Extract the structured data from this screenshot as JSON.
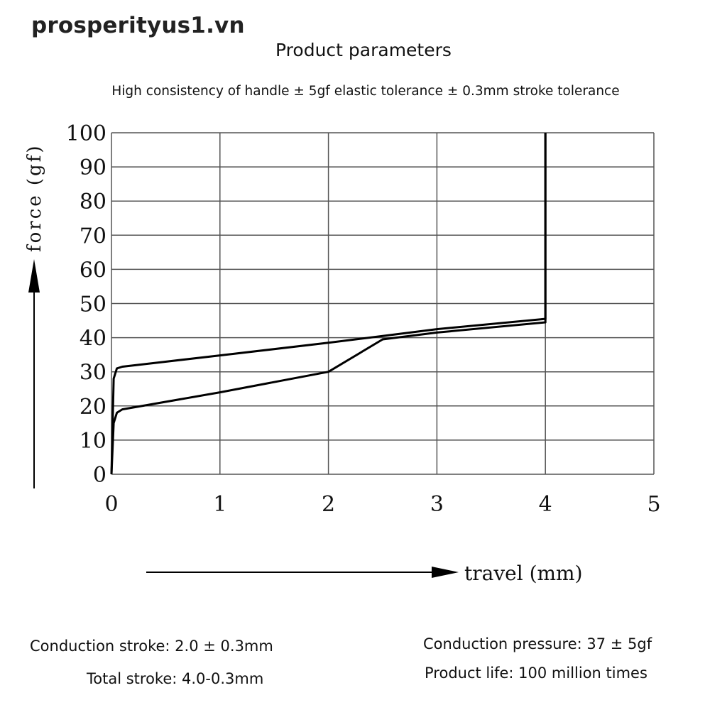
{
  "header": {
    "watermark": "prosperityus1.vn",
    "title": "Product parameters",
    "subtitle": "High consistency of handle ± 5gf elastic tolerance ± 0.3mm stroke tolerance"
  },
  "chart_data": {
    "type": "line",
    "title": "",
    "xlabel": "travel (mm)",
    "ylabel": "force (gf)",
    "xlim": [
      0,
      5
    ],
    "ylim": [
      0,
      100
    ],
    "x_ticks": [
      "0",
      "1",
      "2",
      "3",
      "4",
      "5"
    ],
    "y_ticks": [
      "0",
      "10",
      "20",
      "30",
      "40",
      "50",
      "60",
      "70",
      "80",
      "90",
      "100"
    ],
    "grid": true,
    "series": [
      {
        "points": [
          [
            0,
            0
          ],
          [
            0.02,
            15
          ],
          [
            0.05,
            18
          ],
          [
            0.1,
            19
          ],
          [
            1.0,
            24
          ],
          [
            2.0,
            30
          ],
          [
            2.5,
            39.5
          ],
          [
            3.0,
            41.5
          ],
          [
            4.0,
            44.5
          ],
          [
            4.0,
            100
          ]
        ]
      },
      {
        "points": [
          [
            0,
            0
          ],
          [
            0.02,
            28
          ],
          [
            0.05,
            31
          ],
          [
            0.1,
            31.5
          ],
          [
            1.0,
            34.8
          ],
          [
            2.0,
            38.5
          ],
          [
            2.5,
            40.5
          ],
          [
            3.0,
            42.5
          ],
          [
            4.0,
            45.5
          ],
          [
            4.0,
            100
          ]
        ]
      }
    ],
    "colors": {
      "line": "#000000",
      "grid": "#555555"
    }
  },
  "notes": {
    "conduction_stroke": "Conduction stroke: 2.0 ± 0.3mm",
    "total_stroke": "Total stroke: 4.0-0.3mm",
    "conduction_pressure": "Conduction pressure: 37 ± 5gf",
    "product_life": "Product life: 100 million times"
  }
}
